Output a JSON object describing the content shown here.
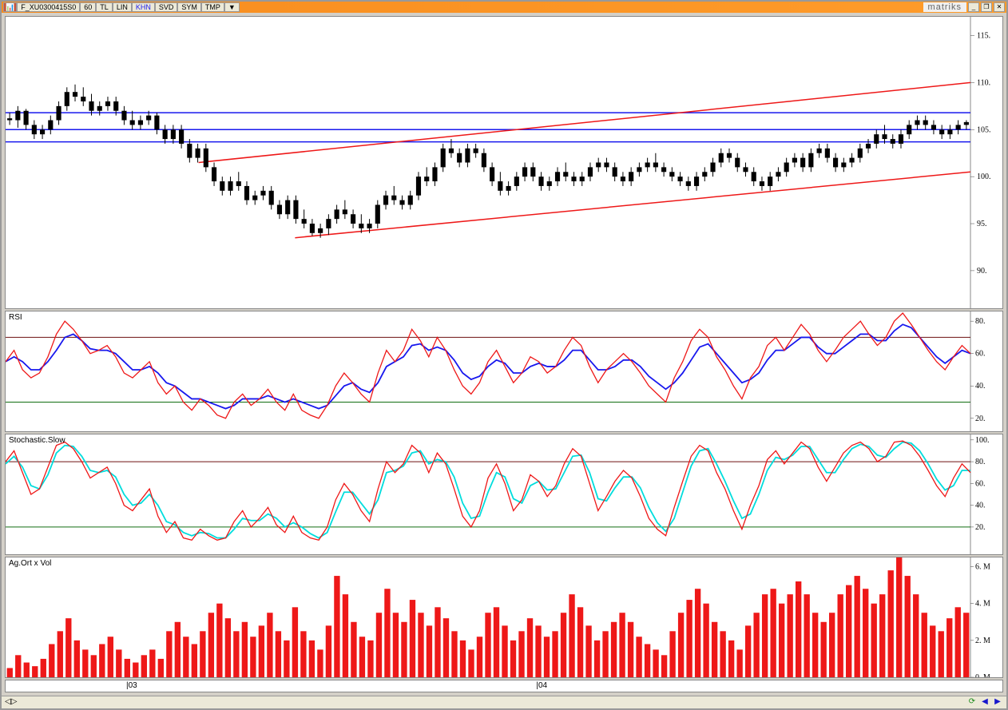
{
  "brand": "matriks",
  "titlebar": {
    "symbol": "F_XU0300415S0",
    "period": "60",
    "tabs": [
      "TL",
      "LIN",
      "KHN",
      "SVD",
      "SYM",
      "TMP"
    ],
    "tab_active_index": 2,
    "dropdown": "▼"
  },
  "price_chart": {
    "type": "candlestick",
    "ylim": [
      86,
      117
    ],
    "yticks": [
      90,
      95,
      100,
      105,
      110,
      115
    ],
    "axis_width": 40,
    "background": "#ffffff",
    "candle_color": "#000000",
    "horizontal_lines": [
      {
        "y": 106.8,
        "color": "#1818ee",
        "width": 1.5
      },
      {
        "y": 105.0,
        "color": "#1818ee",
        "width": 1.5
      },
      {
        "y": 103.7,
        "color": "#1818ee",
        "width": 1.5
      }
    ],
    "trend_lines": [
      {
        "x1": 0.2,
        "y1": 101.5,
        "x2": 1.0,
        "y2": 110.0,
        "color": "#ee1818",
        "width": 1.5
      },
      {
        "x1": 0.3,
        "y1": 93.5,
        "x2": 1.0,
        "y2": 100.5,
        "color": "#ee1818",
        "width": 1.5
      }
    ],
    "data": [
      {
        "o": 106.2,
        "h": 106.8,
        "l": 105.5,
        "c": 106.0
      },
      {
        "o": 106.0,
        "h": 107.5,
        "l": 105.2,
        "c": 107.0
      },
      {
        "o": 107.0,
        "h": 107.2,
        "l": 105.0,
        "c": 105.5
      },
      {
        "o": 105.5,
        "h": 106.0,
        "l": 104.0,
        "c": 104.5
      },
      {
        "o": 104.5,
        "h": 105.5,
        "l": 104.0,
        "c": 105.0
      },
      {
        "o": 105.0,
        "h": 106.5,
        "l": 104.5,
        "c": 106.0
      },
      {
        "o": 106.0,
        "h": 108.0,
        "l": 105.5,
        "c": 107.5
      },
      {
        "o": 107.5,
        "h": 109.5,
        "l": 107.0,
        "c": 109.0
      },
      {
        "o": 109.0,
        "h": 109.8,
        "l": 108.0,
        "c": 108.5
      },
      {
        "o": 108.5,
        "h": 109.5,
        "l": 107.5,
        "c": 108.0
      },
      {
        "o": 108.0,
        "h": 108.8,
        "l": 106.5,
        "c": 107.0
      },
      {
        "o": 107.0,
        "h": 108.0,
        "l": 106.5,
        "c": 107.5
      },
      {
        "o": 107.5,
        "h": 108.5,
        "l": 107.0,
        "c": 108.0
      },
      {
        "o": 108.0,
        "h": 108.5,
        "l": 106.5,
        "c": 107.0
      },
      {
        "o": 107.0,
        "h": 107.5,
        "l": 105.5,
        "c": 106.0
      },
      {
        "o": 106.0,
        "h": 107.0,
        "l": 105.0,
        "c": 105.5
      },
      {
        "o": 105.5,
        "h": 106.5,
        "l": 105.0,
        "c": 106.0
      },
      {
        "o": 106.0,
        "h": 107.0,
        "l": 105.5,
        "c": 106.5
      },
      {
        "o": 106.5,
        "h": 106.8,
        "l": 104.5,
        "c": 105.0
      },
      {
        "o": 105.0,
        "h": 105.5,
        "l": 103.5,
        "c": 104.0
      },
      {
        "o": 104.0,
        "h": 105.5,
        "l": 103.5,
        "c": 105.0
      },
      {
        "o": 105.0,
        "h": 105.5,
        "l": 103.0,
        "c": 103.5
      },
      {
        "o": 103.5,
        "h": 104.0,
        "l": 101.5,
        "c": 102.0
      },
      {
        "o": 102.0,
        "h": 103.5,
        "l": 101.5,
        "c": 103.0
      },
      {
        "o": 103.0,
        "h": 103.5,
        "l": 100.5,
        "c": 101.0
      },
      {
        "o": 101.0,
        "h": 101.5,
        "l": 99.0,
        "c": 99.5
      },
      {
        "o": 99.5,
        "h": 100.0,
        "l": 98.0,
        "c": 98.5
      },
      {
        "o": 98.5,
        "h": 100.0,
        "l": 98.0,
        "c": 99.5
      },
      {
        "o": 99.5,
        "h": 100.5,
        "l": 98.5,
        "c": 99.0
      },
      {
        "o": 99.0,
        "h": 99.5,
        "l": 97.0,
        "c": 97.5
      },
      {
        "o": 97.5,
        "h": 98.5,
        "l": 97.0,
        "c": 98.0
      },
      {
        "o": 98.0,
        "h": 99.0,
        "l": 97.5,
        "c": 98.5
      },
      {
        "o": 98.5,
        "h": 99.0,
        "l": 96.5,
        "c": 97.0
      },
      {
        "o": 97.0,
        "h": 97.5,
        "l": 95.5,
        "c": 96.0
      },
      {
        "o": 96.0,
        "h": 98.0,
        "l": 95.5,
        "c": 97.5
      },
      {
        "o": 97.5,
        "h": 98.0,
        "l": 95.0,
        "c": 95.5
      },
      {
        "o": 95.5,
        "h": 96.5,
        "l": 94.5,
        "c": 95.0
      },
      {
        "o": 95.0,
        "h": 95.5,
        "l": 93.7,
        "c": 94.0
      },
      {
        "o": 94.0,
        "h": 95.0,
        "l": 93.5,
        "c": 94.5
      },
      {
        "o": 94.5,
        "h": 96.0,
        "l": 93.8,
        "c": 95.5
      },
      {
        "o": 95.5,
        "h": 97.0,
        "l": 95.0,
        "c": 96.5
      },
      {
        "o": 96.5,
        "h": 97.5,
        "l": 95.5,
        "c": 96.0
      },
      {
        "o": 96.0,
        "h": 96.5,
        "l": 94.5,
        "c": 95.0
      },
      {
        "o": 95.0,
        "h": 96.0,
        "l": 94.0,
        "c": 94.5
      },
      {
        "o": 94.5,
        "h": 95.5,
        "l": 94.0,
        "c": 95.0
      },
      {
        "o": 95.0,
        "h": 97.5,
        "l": 94.5,
        "c": 97.0
      },
      {
        "o": 97.0,
        "h": 98.5,
        "l": 96.5,
        "c": 98.0
      },
      {
        "o": 98.0,
        "h": 99.0,
        "l": 97.0,
        "c": 97.5
      },
      {
        "o": 97.5,
        "h": 98.0,
        "l": 96.5,
        "c": 97.0
      },
      {
        "o": 97.0,
        "h": 98.5,
        "l": 96.5,
        "c": 98.0
      },
      {
        "o": 98.0,
        "h": 100.5,
        "l": 97.5,
        "c": 100.0
      },
      {
        "o": 100.0,
        "h": 101.0,
        "l": 99.0,
        "c": 99.5
      },
      {
        "o": 99.5,
        "h": 101.5,
        "l": 99.0,
        "c": 101.0
      },
      {
        "o": 101.0,
        "h": 103.5,
        "l": 100.5,
        "c": 103.0
      },
      {
        "o": 103.0,
        "h": 104.0,
        "l": 102.0,
        "c": 102.5
      },
      {
        "o": 102.5,
        "h": 103.0,
        "l": 101.0,
        "c": 101.5
      },
      {
        "o": 101.5,
        "h": 103.5,
        "l": 101.0,
        "c": 103.0
      },
      {
        "o": 103.0,
        "h": 103.5,
        "l": 102.0,
        "c": 102.5
      },
      {
        "o": 102.5,
        "h": 103.0,
        "l": 100.5,
        "c": 101.0
      },
      {
        "o": 101.0,
        "h": 101.5,
        "l": 99.0,
        "c": 99.5
      },
      {
        "o": 99.5,
        "h": 100.5,
        "l": 98.0,
        "c": 98.5
      },
      {
        "o": 98.5,
        "h": 99.5,
        "l": 98.0,
        "c": 99.0
      },
      {
        "o": 99.0,
        "h": 100.5,
        "l": 98.5,
        "c": 100.0
      },
      {
        "o": 100.0,
        "h": 101.5,
        "l": 99.5,
        "c": 101.0
      },
      {
        "o": 101.0,
        "h": 101.5,
        "l": 99.5,
        "c": 100.0
      },
      {
        "o": 100.0,
        "h": 100.5,
        "l": 98.5,
        "c": 99.0
      },
      {
        "o": 99.0,
        "h": 100.0,
        "l": 98.5,
        "c": 99.5
      },
      {
        "o": 99.5,
        "h": 101.0,
        "l": 99.0,
        "c": 100.5
      },
      {
        "o": 100.5,
        "h": 101.5,
        "l": 99.5,
        "c": 100.0
      },
      {
        "o": 100.0,
        "h": 100.5,
        "l": 99.0,
        "c": 99.5
      },
      {
        "o": 99.5,
        "h": 100.5,
        "l": 99.0,
        "c": 100.0
      },
      {
        "o": 100.0,
        "h": 101.5,
        "l": 99.5,
        "c": 101.0
      },
      {
        "o": 101.0,
        "h": 102.0,
        "l": 100.5,
        "c": 101.5
      },
      {
        "o": 101.5,
        "h": 102.0,
        "l": 100.5,
        "c": 101.0
      },
      {
        "o": 101.0,
        "h": 101.5,
        "l": 99.5,
        "c": 100.0
      },
      {
        "o": 100.0,
        "h": 100.5,
        "l": 99.0,
        "c": 99.5
      },
      {
        "o": 99.5,
        "h": 101.0,
        "l": 99.0,
        "c": 100.5
      },
      {
        "o": 100.5,
        "h": 101.5,
        "l": 100.0,
        "c": 101.0
      },
      {
        "o": 101.0,
        "h": 102.0,
        "l": 100.5,
        "c": 101.5
      },
      {
        "o": 101.5,
        "h": 102.5,
        "l": 100.5,
        "c": 101.0
      },
      {
        "o": 101.0,
        "h": 101.5,
        "l": 100.0,
        "c": 100.5
      },
      {
        "o": 100.5,
        "h": 101.0,
        "l": 99.5,
        "c": 100.0
      },
      {
        "o": 100.0,
        "h": 100.5,
        "l": 99.0,
        "c": 99.5
      },
      {
        "o": 99.5,
        "h": 100.0,
        "l": 98.5,
        "c": 99.0
      },
      {
        "o": 99.0,
        "h": 100.5,
        "l": 98.5,
        "c": 100.0
      },
      {
        "o": 100.0,
        "h": 101.0,
        "l": 99.5,
        "c": 100.5
      },
      {
        "o": 100.5,
        "h": 102.0,
        "l": 100.0,
        "c": 101.5
      },
      {
        "o": 101.5,
        "h": 103.0,
        "l": 101.0,
        "c": 102.5
      },
      {
        "o": 102.5,
        "h": 103.0,
        "l": 101.5,
        "c": 102.0
      },
      {
        "o": 102.0,
        "h": 102.5,
        "l": 100.5,
        "c": 101.0
      },
      {
        "o": 101.0,
        "h": 101.5,
        "l": 100.0,
        "c": 100.5
      },
      {
        "o": 100.5,
        "h": 101.0,
        "l": 99.0,
        "c": 99.5
      },
      {
        "o": 99.5,
        "h": 100.0,
        "l": 98.5,
        "c": 99.0
      },
      {
        "o": 99.0,
        "h": 100.5,
        "l": 98.5,
        "c": 100.0
      },
      {
        "o": 100.0,
        "h": 101.0,
        "l": 99.5,
        "c": 100.5
      },
      {
        "o": 100.5,
        "h": 102.0,
        "l": 100.0,
        "c": 101.5
      },
      {
        "o": 101.5,
        "h": 102.5,
        "l": 101.0,
        "c": 102.0
      },
      {
        "o": 102.0,
        "h": 102.5,
        "l": 100.5,
        "c": 101.0
      },
      {
        "o": 101.0,
        "h": 103.0,
        "l": 100.5,
        "c": 102.5
      },
      {
        "o": 102.5,
        "h": 103.5,
        "l": 102.0,
        "c": 103.0
      },
      {
        "o": 103.0,
        "h": 103.5,
        "l": 101.5,
        "c": 102.0
      },
      {
        "o": 102.0,
        "h": 102.5,
        "l": 100.5,
        "c": 101.0
      },
      {
        "o": 101.0,
        "h": 102.0,
        "l": 100.5,
        "c": 101.5
      },
      {
        "o": 101.5,
        "h": 102.5,
        "l": 101.0,
        "c": 102.0
      },
      {
        "o": 102.0,
        "h": 103.5,
        "l": 101.5,
        "c": 103.0
      },
      {
        "o": 103.0,
        "h": 104.0,
        "l": 102.5,
        "c": 103.5
      },
      {
        "o": 103.5,
        "h": 105.0,
        "l": 103.0,
        "c": 104.5
      },
      {
        "o": 104.5,
        "h": 105.5,
        "l": 103.5,
        "c": 104.0
      },
      {
        "o": 104.0,
        "h": 104.5,
        "l": 103.0,
        "c": 103.5
      },
      {
        "o": 103.5,
        "h": 105.0,
        "l": 103.0,
        "c": 104.5
      },
      {
        "o": 104.5,
        "h": 106.0,
        "l": 104.0,
        "c": 105.5
      },
      {
        "o": 105.5,
        "h": 106.5,
        "l": 105.0,
        "c": 106.0
      },
      {
        "o": 106.0,
        "h": 106.5,
        "l": 105.0,
        "c": 105.5
      },
      {
        "o": 105.5,
        "h": 106.0,
        "l": 104.5,
        "c": 105.0
      },
      {
        "o": 105.0,
        "h": 105.5,
        "l": 104.0,
        "c": 104.5
      },
      {
        "o": 104.5,
        "h": 105.5,
        "l": 104.0,
        "c": 105.0
      },
      {
        "o": 105.0,
        "h": 106.0,
        "l": 104.5,
        "c": 105.5
      },
      {
        "o": 105.5,
        "h": 106.0,
        "l": 105.0,
        "c": 105.8
      }
    ]
  },
  "rsi_chart": {
    "label": "RSI",
    "type": "line",
    "ylim": [
      12,
      86
    ],
    "yticks": [
      20,
      40,
      60,
      80
    ],
    "series1_color": "#ee1818",
    "series2_color": "#1818ee",
    "overbought": {
      "y": 70,
      "color": "#6d1010"
    },
    "oversold": {
      "y": 30,
      "color": "#106d10"
    },
    "series1": [
      55,
      62,
      50,
      45,
      48,
      58,
      72,
      80,
      75,
      68,
      60,
      62,
      65,
      58,
      48,
      45,
      50,
      55,
      42,
      35,
      40,
      30,
      25,
      32,
      28,
      22,
      20,
      30,
      35,
      28,
      32,
      38,
      30,
      25,
      35,
      25,
      22,
      20,
      28,
      40,
      48,
      42,
      35,
      30,
      48,
      62,
      55,
      62,
      75,
      68,
      58,
      70,
      62,
      50,
      40,
      35,
      42,
      55,
      62,
      52,
      42,
      48,
      58,
      55,
      48,
      52,
      62,
      70,
      65,
      52,
      42,
      50,
      55,
      60,
      55,
      48,
      40,
      35,
      30,
      45,
      55,
      68,
      75,
      70,
      58,
      50,
      40,
      32,
      45,
      52,
      65,
      70,
      62,
      70,
      78,
      72,
      62,
      55,
      62,
      70,
      75,
      80,
      72,
      65,
      70,
      80,
      85,
      78,
      70,
      62,
      55,
      50,
      58,
      65,
      60
    ],
    "series2": [
      55,
      58,
      55,
      50,
      50,
      55,
      62,
      70,
      72,
      68,
      63,
      62,
      62,
      60,
      55,
      50,
      50,
      52,
      48,
      42,
      40,
      36,
      32,
      32,
      30,
      28,
      26,
      28,
      32,
      32,
      32,
      34,
      32,
      30,
      32,
      30,
      28,
      26,
      28,
      34,
      40,
      42,
      38,
      36,
      42,
      52,
      55,
      58,
      65,
      66,
      62,
      64,
      62,
      56,
      48,
      44,
      46,
      52,
      56,
      54,
      48,
      48,
      52,
      54,
      52,
      52,
      56,
      62,
      62,
      56,
      50,
      50,
      52,
      56,
      56,
      52,
      46,
      42,
      38,
      42,
      48,
      56,
      64,
      66,
      60,
      54,
      48,
      42,
      44,
      48,
      56,
      62,
      62,
      66,
      70,
      70,
      64,
      60,
      60,
      64,
      68,
      72,
      72,
      68,
      68,
      74,
      78,
      76,
      70,
      64,
      58,
      54,
      58,
      62,
      60
    ]
  },
  "stoch_chart": {
    "label": "Stochastic.Slow",
    "type": "line",
    "ylim": [
      -5,
      105
    ],
    "yticks": [
      20,
      40,
      60,
      80,
      100
    ],
    "series1_color": "#ee1818",
    "series2_color": "#00dddd",
    "overbought": {
      "y": 80,
      "color": "#6d1010"
    },
    "oversold": {
      "y": 20,
      "color": "#106d10"
    },
    "series1": [
      80,
      90,
      70,
      50,
      55,
      75,
      95,
      98,
      92,
      80,
      65,
      70,
      75,
      60,
      40,
      35,
      45,
      55,
      30,
      15,
      25,
      10,
      8,
      18,
      12,
      8,
      10,
      25,
      35,
      20,
      28,
      38,
      22,
      15,
      30,
      15,
      10,
      8,
      20,
      45,
      60,
      50,
      35,
      25,
      55,
      80,
      70,
      78,
      95,
      88,
      70,
      88,
      78,
      55,
      30,
      20,
      35,
      65,
      78,
      60,
      35,
      45,
      68,
      62,
      48,
      58,
      78,
      92,
      85,
      60,
      35,
      48,
      62,
      72,
      65,
      48,
      28,
      18,
      12,
      38,
      62,
      85,
      95,
      90,
      70,
      55,
      35,
      18,
      40,
      58,
      82,
      90,
      78,
      88,
      98,
      92,
      75,
      62,
      75,
      88,
      95,
      98,
      92,
      80,
      85,
      98,
      99,
      95,
      85,
      72,
      58,
      48,
      65,
      78,
      70
    ],
    "series2": [
      78,
      85,
      75,
      58,
      55,
      68,
      88,
      95,
      94,
      85,
      72,
      70,
      72,
      66,
      50,
      40,
      42,
      50,
      40,
      25,
      22,
      15,
      12,
      15,
      14,
      10,
      10,
      18,
      28,
      26,
      26,
      32,
      28,
      20,
      24,
      20,
      14,
      10,
      15,
      34,
      52,
      52,
      42,
      32,
      45,
      70,
      72,
      76,
      88,
      90,
      78,
      82,
      80,
      66,
      42,
      28,
      30,
      52,
      70,
      66,
      46,
      42,
      58,
      62,
      54,
      55,
      70,
      85,
      86,
      70,
      46,
      44,
      56,
      66,
      66,
      56,
      38,
      24,
      16,
      28,
      52,
      76,
      90,
      92,
      78,
      62,
      44,
      28,
      32,
      50,
      72,
      84,
      82,
      86,
      94,
      94,
      82,
      70,
      70,
      82,
      92,
      96,
      94,
      86,
      84,
      92,
      98,
      97,
      90,
      78,
      64,
      54,
      58,
      72,
      72
    ]
  },
  "volume_chart": {
    "label": "Ag.Ort x Vol",
    "type": "bar",
    "ylim": [
      0,
      6.5
    ],
    "yticks": [
      0,
      2,
      4,
      6
    ],
    "ytick_suffix": ". M",
    "bar_color": "#ee1818",
    "data": [
      0.5,
      1.2,
      0.8,
      0.6,
      1.0,
      1.8,
      2.5,
      3.2,
      2.0,
      1.5,
      1.2,
      1.8,
      2.2,
      1.5,
      1.0,
      0.8,
      1.2,
      1.5,
      1.0,
      2.5,
      3.0,
      2.2,
      1.8,
      2.5,
      3.5,
      4.0,
      3.2,
      2.5,
      3.0,
      2.2,
      2.8,
      3.5,
      2.5,
      2.0,
      3.8,
      2.5,
      2.0,
      1.5,
      2.8,
      5.5,
      4.5,
      3.0,
      2.2,
      2.0,
      3.5,
      4.8,
      3.5,
      3.0,
      4.2,
      3.5,
      2.8,
      3.8,
      3.2,
      2.5,
      2.0,
      1.5,
      2.2,
      3.5,
      3.8,
      2.8,
      2.0,
      2.5,
      3.2,
      2.8,
      2.2,
      2.5,
      3.5,
      4.5,
      3.8,
      2.8,
      2.0,
      2.5,
      3.0,
      3.5,
      3.0,
      2.2,
      1.8,
      1.5,
      1.2,
      2.5,
      3.5,
      4.2,
      4.8,
      4.0,
      3.0,
      2.5,
      2.0,
      1.5,
      2.8,
      3.5,
      4.5,
      4.8,
      4.0,
      4.5,
      5.2,
      4.5,
      3.5,
      3.0,
      3.5,
      4.5,
      5.0,
      5.5,
      4.8,
      4.0,
      4.5,
      5.8,
      6.5,
      5.5,
      4.5,
      3.5,
      2.8,
      2.5,
      3.2,
      3.8,
      3.5
    ]
  },
  "xaxis": {
    "ticks": [
      {
        "pos": 0.125,
        "label": "03"
      },
      {
        "pos": 0.55,
        "label": "04"
      }
    ]
  },
  "status_bar": {
    "left_icon": "◁▷",
    "right_icons": [
      "⟳",
      "◀",
      "▶"
    ]
  }
}
